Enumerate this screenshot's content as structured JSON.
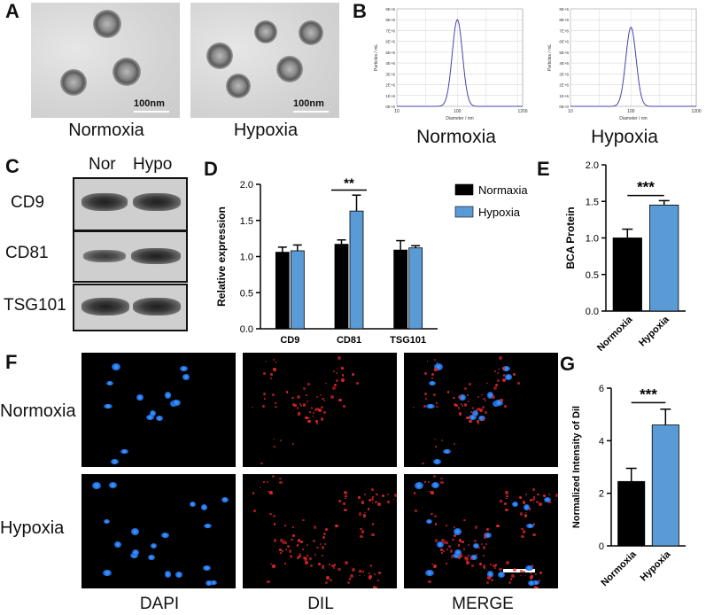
{
  "panels": {
    "A": {
      "letter": "A",
      "captions": [
        "Normoxia",
        "Hypoxia"
      ],
      "scale": "100nm"
    },
    "B": {
      "letter": "B",
      "captions": [
        "Normoxia",
        "Hypoxia"
      ],
      "xlabel": "Diameter / nm",
      "ylabel": "Particles / mL",
      "xticks": [
        "10",
        "100",
        "1200"
      ],
      "yticks": [
        "0E+0",
        "1E+6",
        "2E+6",
        "3E+6",
        "4E+6",
        "5E+6",
        "6E+6",
        "7E+6",
        "8E+6",
        "9E+6"
      ]
    },
    "C": {
      "letter": "C",
      "lanes": [
        "Nor",
        "Hypo"
      ],
      "rows": [
        "CD9",
        "CD81",
        "TSG101"
      ]
    },
    "D": {
      "letter": "D"
    },
    "E": {
      "letter": "E"
    },
    "F": {
      "letter": "F",
      "rows": [
        "Normoxia",
        "Hypoxia"
      ],
      "columns": [
        "DAPI",
        "DIL",
        "MERGE"
      ]
    },
    "G": {
      "letter": "G"
    }
  },
  "colors": {
    "normoxia": "#000000",
    "hypoxia": "#5b9bd5",
    "nta_line": "#4444aa"
  },
  "chart_data": [
    {
      "id": "B-left",
      "type": "line",
      "title": "",
      "xlabel": "Diameter / nm",
      "ylabel": "Particles / mL",
      "xscale": "log",
      "xlim": [
        10,
        1200
      ],
      "ylim": [
        0,
        9000000
      ],
      "peak_x": 100,
      "peak_y": 8000000
    },
    {
      "id": "B-right",
      "type": "line",
      "title": "",
      "xlabel": "Diameter / nm",
      "ylabel": "Particles / mL",
      "xscale": "log",
      "xlim": [
        10,
        1200
      ],
      "ylim": [
        0,
        9000000
      ],
      "peak_x": 100,
      "peak_y": 7300000
    },
    {
      "id": "D",
      "type": "bar",
      "ylabel": "Relative expression",
      "ylim": [
        0,
        2.0
      ],
      "yticks": [
        "0.0",
        "0.5",
        "1.0",
        "1.5",
        "2.0"
      ],
      "categories": [
        "CD9",
        "CD81",
        "TSG101"
      ],
      "series": [
        {
          "name": "Normaxia",
          "values": [
            1.06,
            1.17,
            1.09
          ],
          "errors": [
            0.07,
            0.06,
            0.13
          ]
        },
        {
          "name": "Hypoxia",
          "values": [
            1.08,
            1.63,
            1.12
          ],
          "errors": [
            0.08,
            0.22,
            0.03
          ]
        }
      ],
      "legend": "top-right",
      "significance": [
        {
          "category": "CD81",
          "label": "**"
        }
      ]
    },
    {
      "id": "E",
      "type": "bar",
      "ylabel": "BCA Protein",
      "ylim": [
        0,
        2.0
      ],
      "yticks": [
        "0.0",
        "0.5",
        "1.0",
        "1.5",
        "2.0"
      ],
      "categories": [
        "Normoxia",
        "Hypoxia"
      ],
      "values": [
        1.0,
        1.45
      ],
      "errors": [
        0.12,
        0.06
      ],
      "significance": "***"
    },
    {
      "id": "G",
      "type": "bar",
      "ylabel": "Normalized Intensity of Dil",
      "ylim": [
        0,
        6
      ],
      "yticks": [
        "0",
        "2",
        "4",
        "6"
      ],
      "categories": [
        "Normoxia",
        "Hypoxia"
      ],
      "values": [
        2.45,
        4.6
      ],
      "errors": [
        0.5,
        0.6
      ],
      "significance": "***"
    }
  ]
}
